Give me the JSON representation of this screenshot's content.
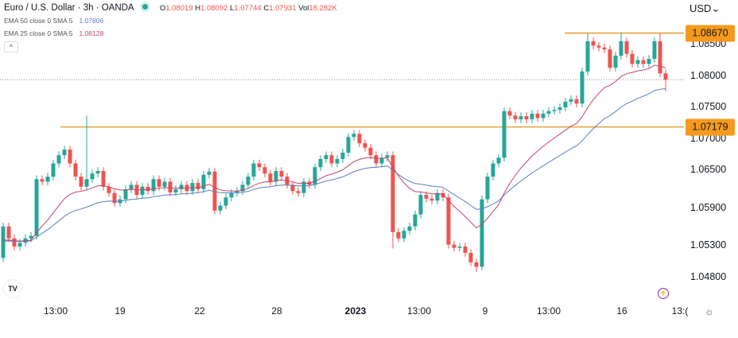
{
  "header": {
    "symbol": "Euro / U.S. Dollar · 3h · OANDA",
    "o_label": "O",
    "o": "1.08019",
    "h_label": "H",
    "h": "1.08092",
    "l_label": "L",
    "l": "1.07744",
    "c_label": "C",
    "c": "1.07931",
    "vol_label": "Vol",
    "vol": "18.282K"
  },
  "indicators": [
    {
      "label": "EMA 50 close 0 SMA 5",
      "value": "1.07806",
      "color": "#5b7fc4"
    },
    {
      "label": "EMA 25 close 0 SMA 5",
      "value": "1.08128",
      "color": "#c2456a"
    }
  ],
  "collapse_icon": "chevron-up-icon",
  "currency": "USD",
  "chart_data": {
    "type": "candlestick",
    "price_axis": {
      "ticks": [
        "1.08500",
        "1.08000",
        "1.07500",
        "1.07000",
        "1.06500",
        "1.05900",
        "1.05300",
        "1.04800"
      ],
      "range": [
        1.045,
        1.089
      ]
    },
    "time_axis": {
      "ticks": [
        {
          "label": "13:00"
        },
        {
          "label": "19"
        },
        {
          "label": "22"
        },
        {
          "label": "28"
        },
        {
          "label": "2023",
          "bold": true
        },
        {
          "label": "13:00"
        },
        {
          "label": "9"
        },
        {
          "label": "13:00"
        },
        {
          "label": "16"
        },
        {
          "label": "13:("
        }
      ]
    },
    "first_open": 1.051,
    "closes": [
      1.056,
      1.0541,
      1.0528,
      1.0534,
      1.0541,
      1.0545,
      1.0635,
      1.0631,
      1.0639,
      1.066,
      1.0673,
      1.0682,
      1.066,
      1.0639,
      1.0623,
      1.0635,
      1.0644,
      1.0648,
      1.0623,
      1.0613,
      1.0597,
      1.0603,
      1.0619,
      1.0626,
      1.061,
      1.0623,
      1.0616,
      1.0635,
      1.0623,
      1.0631,
      1.0614,
      1.0619,
      1.0626,
      1.0616,
      1.0629,
      1.0619,
      1.0642,
      1.0647,
      1.0585,
      1.0593,
      1.0606,
      1.0613,
      1.0616,
      1.0626,
      1.0639,
      1.066,
      1.0654,
      1.0644,
      1.0631,
      1.0648,
      1.0639,
      1.0626,
      1.0616,
      1.0613,
      1.0631,
      1.0626,
      1.0654,
      1.0667,
      1.0673,
      1.066,
      1.0667,
      1.0677,
      1.0702,
      1.0707,
      1.0692,
      1.0685,
      1.0673,
      1.066,
      1.0669,
      1.0673,
      1.0551,
      1.0541,
      1.0553,
      1.056,
      1.0579,
      1.061,
      1.0604,
      1.0601,
      1.0613,
      1.0606,
      1.0531,
      1.0526,
      1.0528,
      1.0518,
      1.0503,
      1.0496,
      1.0603,
      1.0639,
      1.066,
      1.0669,
      1.0743,
      1.0736,
      1.073,
      1.0735,
      1.073,
      1.0739,
      1.0732,
      1.0739,
      1.0743,
      1.0745,
      1.0749,
      1.0758,
      1.0762,
      1.0755,
      1.0806,
      1.0854,
      1.0847,
      1.0844,
      1.0841,
      1.0812,
      1.0831,
      1.0854,
      1.0834,
      1.0818,
      1.0824,
      1.0818,
      1.0826,
      1.0854,
      1.0803,
      1.0793
    ],
    "high_overrides": {
      "15": 1.0736,
      "105": 1.0867,
      "111": 1.0868,
      "118": 1.0867
    },
    "low_overrides": {
      "85": 1.0488,
      "70": 1.0525,
      "119": 1.0774
    },
    "horizontal_levels": [
      {
        "price": 1.07179,
        "label": "1.07179",
        "color": "#e8a33a"
      },
      {
        "price": 1.0867,
        "label": "1.08670",
        "color": "#e8a33a"
      }
    ],
    "last_price": 1.07931,
    "colors": {
      "up": "#26a69a",
      "down": "#ef5350",
      "ema50": "#5b7fc4",
      "ema25": "#c2456a",
      "label_box": "#f59a1c"
    }
  },
  "footer": {
    "logo": "TV",
    "alert_icon": "lightning-icon",
    "settings_icon": "gear-icon"
  }
}
